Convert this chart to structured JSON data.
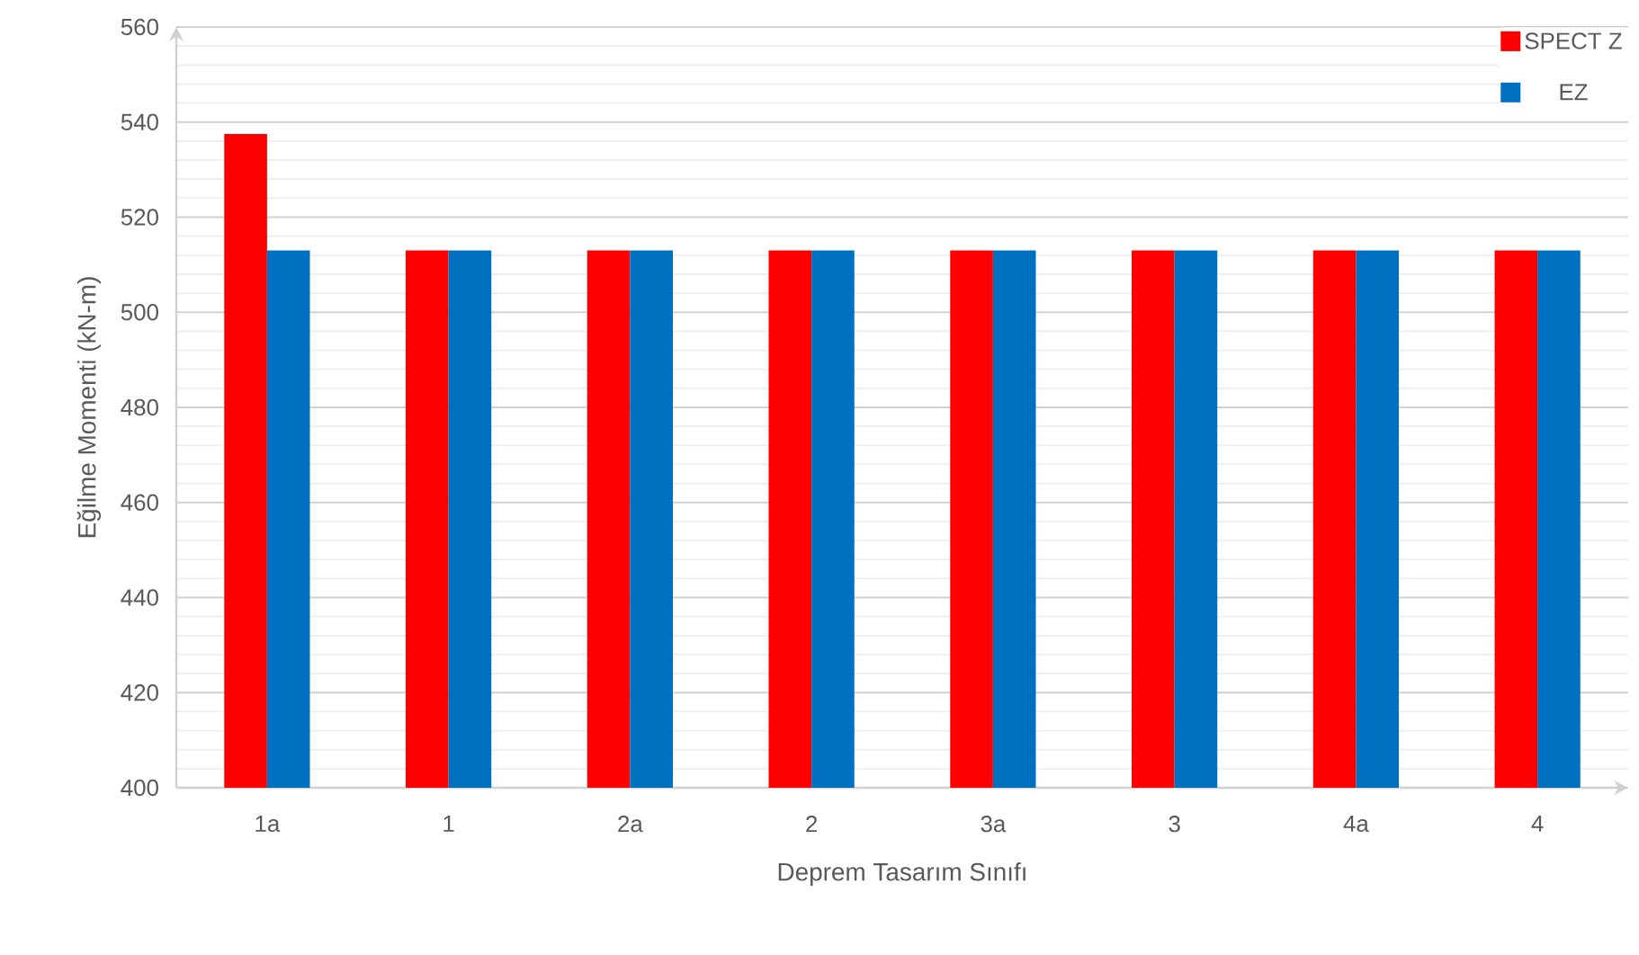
{
  "chart_data": {
    "type": "bar",
    "categories": [
      "1a",
      "1",
      "2a",
      "2",
      "3a",
      "3",
      "4a",
      "4"
    ],
    "series": [
      {
        "name": "SPECT Z",
        "color": "#ff0000",
        "values": [
          537.5,
          513,
          513,
          513,
          513,
          513,
          513,
          513
        ]
      },
      {
        "name": "EZ",
        "color": "#0070c0",
        "values": [
          513,
          513,
          513,
          513,
          513,
          513,
          513,
          513
        ]
      }
    ],
    "xlabel": "Deprem Tasarım Sınıfı",
    "ylabel": "Eğilme Momenti (kN-m)",
    "ylim": [
      400,
      560
    ],
    "yticks": [
      400,
      420,
      440,
      460,
      480,
      500,
      520,
      540,
      560
    ],
    "grid": "y",
    "legend": "top right"
  }
}
